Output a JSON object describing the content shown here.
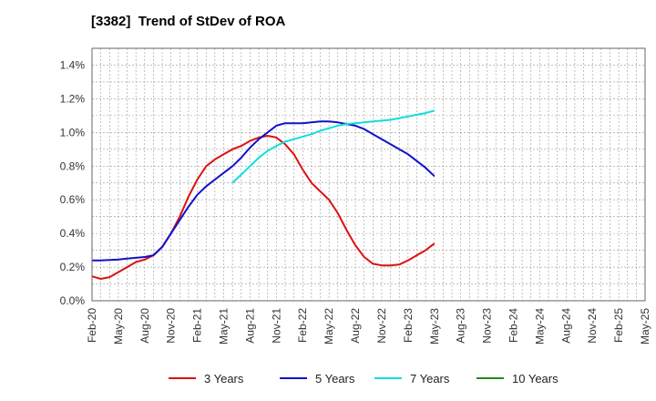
{
  "chart_data": {
    "type": "line",
    "title": "[3382]  Trend of StDev of ROA",
    "xlabel": "",
    "ylabel": "",
    "x_tick_labels": [
      "Feb-20",
      "May-20",
      "Aug-20",
      "Nov-20",
      "Feb-21",
      "May-21",
      "Aug-21",
      "Nov-21",
      "Feb-22",
      "May-22",
      "Aug-22",
      "Nov-22",
      "Feb-23",
      "May-23",
      "Aug-23",
      "Nov-23",
      "Feb-24",
      "May-24",
      "Aug-24",
      "Nov-24",
      "Feb-25",
      "May-25"
    ],
    "y_tick_labels": [
      "0.0%",
      "0.2%",
      "0.4%",
      "0.6%",
      "0.8%",
      "1.0%",
      "1.2%",
      "1.4%"
    ],
    "ylim": [
      0,
      1.5
    ],
    "grid": true,
    "legend_position": "bottom",
    "series": [
      {
        "name": "3 Years",
        "color": "#dd1111",
        "values": [
          [
            0,
            0.145
          ],
          [
            1,
            0.13
          ],
          [
            2,
            0.14
          ],
          [
            3,
            0.17
          ],
          [
            4,
            0.2
          ],
          [
            5,
            0.23
          ],
          [
            6,
            0.245
          ],
          [
            7,
            0.27
          ],
          [
            8,
            0.32
          ],
          [
            9,
            0.4
          ],
          [
            10,
            0.5
          ],
          [
            11,
            0.62
          ],
          [
            12,
            0.72
          ],
          [
            13,
            0.8
          ],
          [
            14,
            0.84
          ],
          [
            15,
            0.87
          ],
          [
            16,
            0.9
          ],
          [
            17,
            0.92
          ],
          [
            18,
            0.95
          ],
          [
            19,
            0.97
          ],
          [
            20,
            0.98
          ],
          [
            21,
            0.97
          ],
          [
            22,
            0.93
          ],
          [
            23,
            0.87
          ],
          [
            24,
            0.78
          ],
          [
            25,
            0.7
          ],
          [
            26,
            0.65
          ],
          [
            27,
            0.6
          ],
          [
            28,
            0.52
          ],
          [
            29,
            0.42
          ],
          [
            30,
            0.33
          ],
          [
            31,
            0.26
          ],
          [
            32,
            0.22
          ],
          [
            33,
            0.21
          ],
          [
            34,
            0.21
          ],
          [
            35,
            0.215
          ],
          [
            36,
            0.24
          ],
          [
            37,
            0.27
          ],
          [
            38,
            0.3
          ],
          [
            39,
            0.34
          ]
        ]
      },
      {
        "name": "5 Years",
        "color": "#1111cc",
        "values": [
          [
            0,
            0.24
          ],
          [
            1,
            0.24
          ],
          [
            2,
            0.242
          ],
          [
            3,
            0.245
          ],
          [
            4,
            0.25
          ],
          [
            5,
            0.255
          ],
          [
            6,
            0.26
          ],
          [
            7,
            0.27
          ],
          [
            8,
            0.32
          ],
          [
            9,
            0.4
          ],
          [
            10,
            0.48
          ],
          [
            11,
            0.56
          ],
          [
            12,
            0.63
          ],
          [
            13,
            0.68
          ],
          [
            14,
            0.72
          ],
          [
            15,
            0.76
          ],
          [
            16,
            0.8
          ],
          [
            17,
            0.85
          ],
          [
            18,
            0.91
          ],
          [
            19,
            0.96
          ],
          [
            20,
            1.0
          ],
          [
            21,
            1.04
          ],
          [
            22,
            1.055
          ],
          [
            23,
            1.055
          ],
          [
            24,
            1.055
          ],
          [
            25,
            1.06
          ],
          [
            26,
            1.065
          ],
          [
            27,
            1.065
          ],
          [
            28,
            1.06
          ],
          [
            29,
            1.05
          ],
          [
            30,
            1.04
          ],
          [
            31,
            1.02
          ],
          [
            32,
            0.99
          ],
          [
            33,
            0.96
          ],
          [
            34,
            0.93
          ],
          [
            35,
            0.9
          ],
          [
            36,
            0.87
          ],
          [
            37,
            0.83
          ],
          [
            38,
            0.79
          ],
          [
            39,
            0.74
          ]
        ]
      },
      {
        "name": "7 Years",
        "color": "#11dddd",
        "values": [
          [
            16,
            0.7
          ],
          [
            17,
            0.75
          ],
          [
            18,
            0.8
          ],
          [
            19,
            0.85
          ],
          [
            20,
            0.89
          ],
          [
            21,
            0.92
          ],
          [
            22,
            0.945
          ],
          [
            23,
            0.96
          ],
          [
            24,
            0.975
          ],
          [
            25,
            0.99
          ],
          [
            26,
            1.01
          ],
          [
            27,
            1.025
          ],
          [
            28,
            1.04
          ],
          [
            29,
            1.05
          ],
          [
            30,
            1.055
          ],
          [
            31,
            1.06
          ],
          [
            32,
            1.065
          ],
          [
            33,
            1.07
          ],
          [
            34,
            1.075
          ],
          [
            35,
            1.085
          ],
          [
            36,
            1.095
          ],
          [
            37,
            1.105
          ],
          [
            38,
            1.115
          ],
          [
            39,
            1.13
          ]
        ]
      },
      {
        "name": "10 Years",
        "color": "#228822",
        "values": []
      }
    ]
  }
}
